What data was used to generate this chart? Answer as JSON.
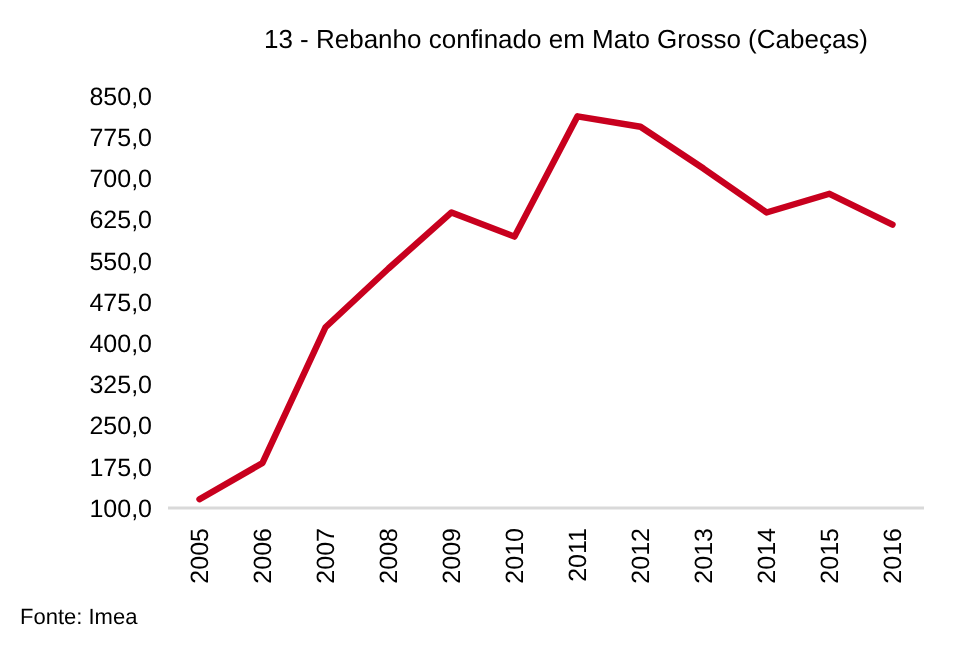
{
  "chart_data": {
    "type": "line",
    "title": "13 - Rebanho confinado em Mato Grosso (Cabeças)",
    "categories": [
      "2005",
      "2006",
      "2007",
      "2008",
      "2009",
      "2010",
      "2011",
      "2012",
      "2013",
      "2014",
      "2015",
      "2016"
    ],
    "series": [
      {
        "color": "#c8001e",
        "values": [
          116,
          182,
          429,
          536,
          638,
          594,
          813,
          794,
          718,
          638,
          672,
          616
        ]
      }
    ],
    "ylim": [
      100,
      850
    ],
    "yticks": [
      {
        "value": 100,
        "label": "100,0"
      },
      {
        "value": 175,
        "label": "175,0"
      },
      {
        "value": 250,
        "label": "250,0"
      },
      {
        "value": 325,
        "label": "325,0"
      },
      {
        "value": 400,
        "label": "400,0"
      },
      {
        "value": 475,
        "label": "475,0"
      },
      {
        "value": 550,
        "label": "550,0"
      },
      {
        "value": 625,
        "label": "625,0"
      },
      {
        "value": 700,
        "label": "700,0"
      },
      {
        "value": 775,
        "label": "775,0"
      },
      {
        "value": 850,
        "label": "850,0"
      }
    ],
    "marker": "none",
    "line_style": "solid",
    "annotations": [
      "Fonte: Imea"
    ]
  }
}
